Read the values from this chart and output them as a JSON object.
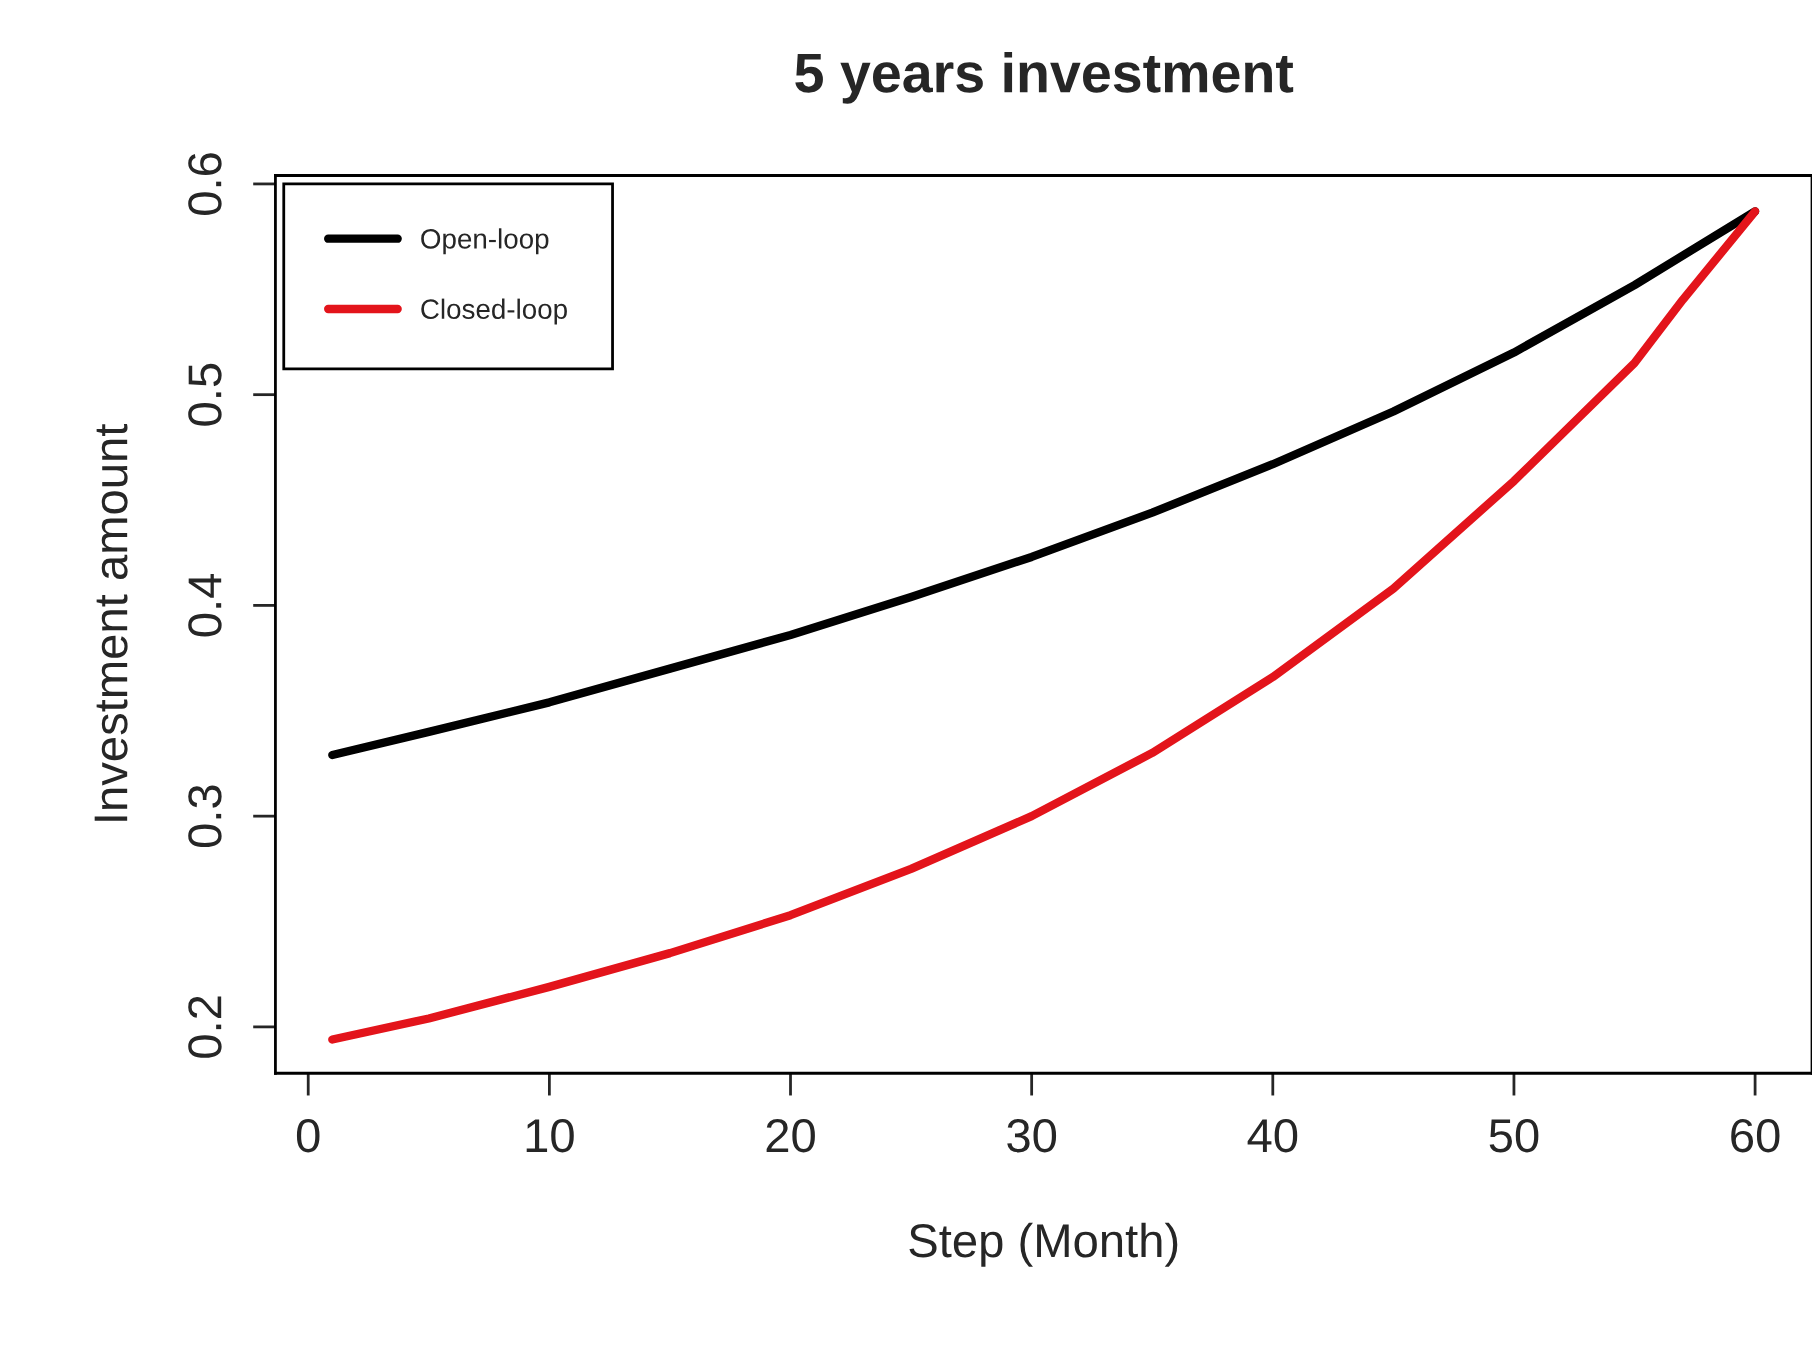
{
  "chart_data": {
    "type": "line",
    "title": "5 years investment",
    "xlabel": "Step (Month)",
    "ylabel": "Investment amount",
    "xlim": [
      -1.36,
      62.36
    ],
    "ylim": [
      0.178,
      0.604
    ],
    "xticks": [
      0,
      10,
      20,
      30,
      40,
      50,
      60
    ],
    "yticks": [
      0.2,
      0.3,
      0.4,
      0.5,
      0.6
    ],
    "grid": false,
    "legend": "top left",
    "marker": "none",
    "line_style": "solid",
    "series": [
      {
        "name": "Open-loop",
        "color": "#000000",
        "x": [
          1,
          5,
          10,
          15,
          20,
          25,
          30,
          35,
          40,
          45,
          50,
          55,
          60
        ],
        "values": [
          0.329,
          0.34,
          0.354,
          0.37,
          0.386,
          0.404,
          0.423,
          0.444,
          0.467,
          0.492,
          0.52,
          0.552,
          0.587
        ]
      },
      {
        "name": "Closed-loop",
        "color": "#e3141b",
        "x": [
          1,
          5,
          10,
          15,
          20,
          25,
          30,
          35,
          40,
          45,
          50,
          55,
          57,
          60
        ],
        "values": [
          0.194,
          0.204,
          0.219,
          0.235,
          0.253,
          0.275,
          0.3,
          0.33,
          0.366,
          0.408,
          0.459,
          0.515,
          0.545,
          0.587
        ]
      }
    ]
  }
}
